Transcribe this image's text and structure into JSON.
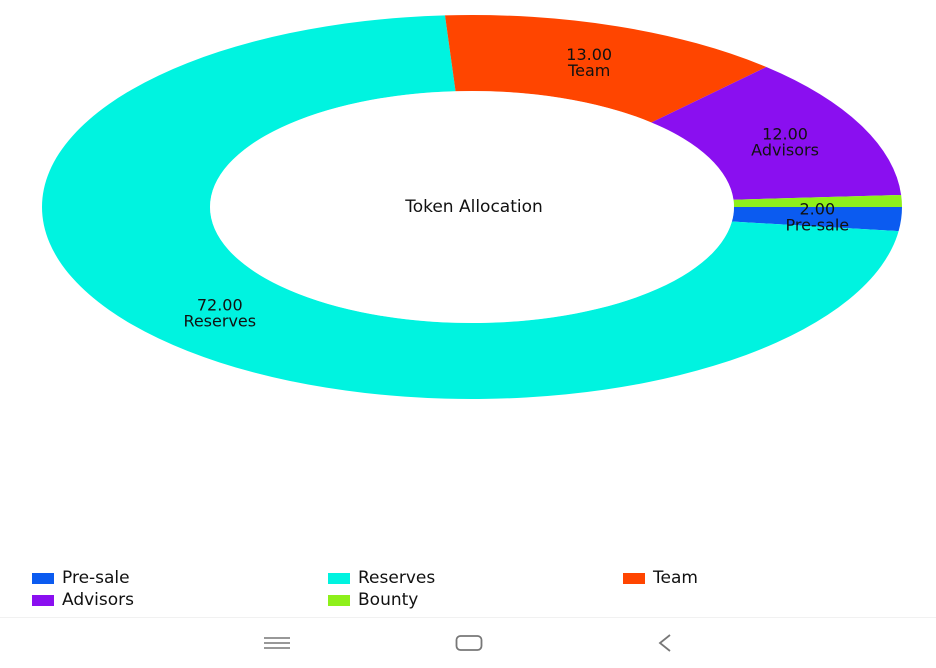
{
  "chart_data": {
    "type": "pie",
    "title": "Token Allocation",
    "donut": true,
    "slices": [
      {
        "name": "Pre-sale",
        "value": 2.0,
        "label": "2.00",
        "color": "#0b5bf0"
      },
      {
        "name": "Reserves",
        "value": 72.0,
        "label": "72.00",
        "color": "#00f3e0"
      },
      {
        "name": "Team",
        "value": 13.0,
        "label": "13.00",
        "color": "#ff4500"
      },
      {
        "name": "Advisors",
        "value": 12.0,
        "label": "12.00",
        "color": "#8a0ff0"
      },
      {
        "name": "Bounty",
        "value": 1.0,
        "label": "",
        "color": "#8ef01a"
      }
    ],
    "legend_placement": "bottom"
  },
  "legend": {
    "items": [
      {
        "label": "Pre-sale",
        "color": "#0b5bf0"
      },
      {
        "label": "Reserves",
        "color": "#00f3e0"
      },
      {
        "label": "Team",
        "color": "#ff4500"
      },
      {
        "label": "Advisors",
        "color": "#8a0ff0"
      },
      {
        "label": "Bounty",
        "color": "#8ef01a"
      }
    ]
  },
  "navbar": {
    "recents": "recent-apps-icon",
    "home": "home-icon",
    "back": "back-icon",
    "icon_color": "#777777"
  }
}
